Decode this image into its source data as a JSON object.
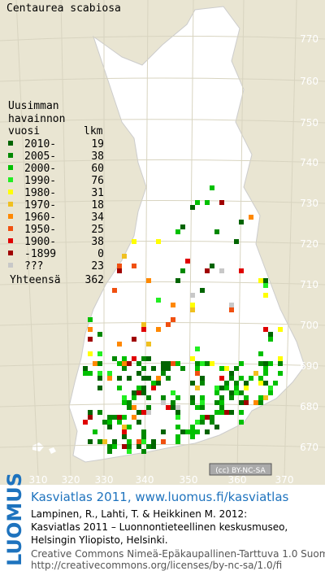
{
  "title": "Centaurea scabiosa",
  "legend": {
    "header": [
      "Uusimman",
      "havainnon",
      "vuosi"
    ],
    "count_header": "lkm",
    "rows": [
      {
        "label": "2010-",
        "count": 19,
        "color": "#006400"
      },
      {
        "label": "2005-",
        "count": 38,
        "color": "#008800"
      },
      {
        "label": "2000-",
        "count": 60,
        "color": "#00c000"
      },
      {
        "label": "1990-",
        "count": 76,
        "color": "#22ee22"
      },
      {
        "label": "1980-",
        "count": 31,
        "color": "#ffff00"
      },
      {
        "label": "1970-",
        "count": 18,
        "color": "#f0c020"
      },
      {
        "label": "1960-",
        "count": 34,
        "color": "#ff8800"
      },
      {
        "label": "1950-",
        "count": 25,
        "color": "#f05010"
      },
      {
        "label": "1900-",
        "count": 38,
        "color": "#e00000"
      },
      {
        "label": "-1899",
        "count": 0,
        "color": "#a00000"
      },
      {
        "label": "???",
        "count": 23,
        "color": "#c8c8c8"
      }
    ],
    "total_label": "Yhteensä",
    "total": 362
  },
  "grid_labels": {
    "north": [
      770,
      760,
      750,
      740,
      730,
      720,
      710,
      700,
      690,
      680,
      670
    ],
    "east": [
      310,
      320,
      330,
      340,
      350,
      360,
      370
    ]
  },
  "license_badge": "(cc) BY-NC-SA",
  "brand": "LUOMUS",
  "footer": {
    "link": "Kasviatlas 2011, www.luomus.fi/kasviatlas",
    "citation": [
      "Lampinen, R., Lahti, T. & Heikkinen M. 2012:",
      "Kasviatlas 2011 – Luonnontieteellinen keskusmuseo,",
      "Helsingin Yliopisto, Helsinki."
    ],
    "license": [
      "Creative Commons Nimeä-Epäkaupallinen-Tarttuva 1.0 Suomi",
      "http://creativecommons.org/licenses/by-nc-sa/1.0/fi"
    ]
  }
}
